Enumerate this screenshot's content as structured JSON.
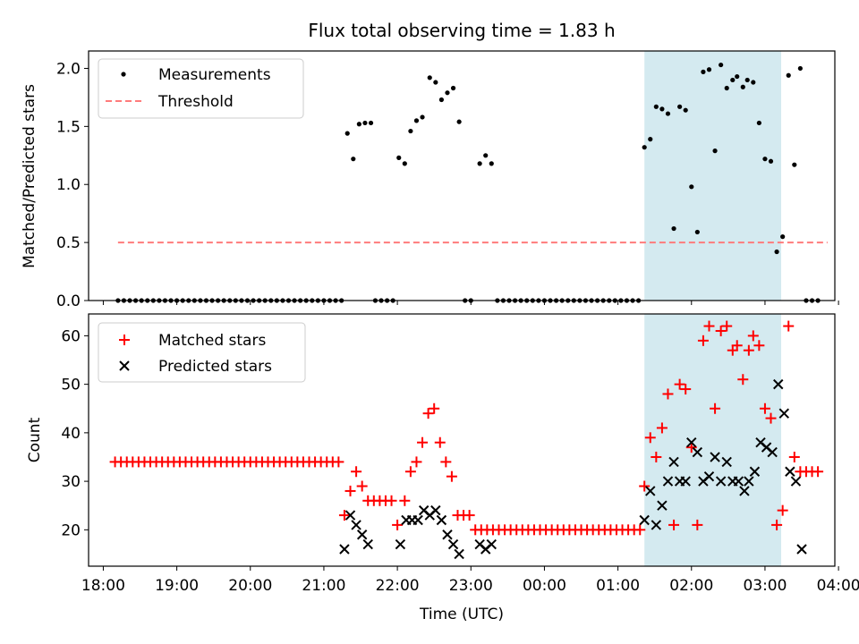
{
  "figure": {
    "title": "Flux total observing time = 1.83 h",
    "xlabel": "Time (UTC)",
    "x_ticks": [
      "18:00",
      "19:00",
      "20:00",
      "21:00",
      "22:00",
      "23:00",
      "00:00",
      "01:00",
      "02:00",
      "03:00",
      "04:00"
    ]
  },
  "chart_data": [
    {
      "type": "scatter",
      "ylabel": "Matched/Predicted stars",
      "xlim": [
        -0.2,
        9.95
      ],
      "ylim": [
        0,
        2.15
      ],
      "y_ticks": [
        "0.0",
        "0.5",
        "1.0",
        "1.5",
        "2.0"
      ],
      "y_tick_values": [
        0,
        0.5,
        1.0,
        1.5,
        2.0
      ],
      "legend_position": "top-left",
      "highlight_span": [
        7.36,
        9.22
      ],
      "highlight_color": "#d4eaf0",
      "threshold": {
        "name": "Threshold",
        "y": 0.5,
        "x": [
          0.2,
          9.85
        ],
        "color": "#ff7b7b"
      },
      "measurements": {
        "name": "Measurements",
        "color": "#000000",
        "points": [
          [
            0.2,
            0
          ],
          [
            0.28,
            0
          ],
          [
            0.36,
            0
          ],
          [
            0.44,
            0
          ],
          [
            0.52,
            0
          ],
          [
            0.6,
            0
          ],
          [
            0.68,
            0
          ],
          [
            0.76,
            0
          ],
          [
            0.84,
            0
          ],
          [
            0.92,
            0
          ],
          [
            1.0,
            0
          ],
          [
            1.08,
            0
          ],
          [
            1.16,
            0
          ],
          [
            1.24,
            0
          ],
          [
            1.32,
            0
          ],
          [
            1.4,
            0
          ],
          [
            1.48,
            0
          ],
          [
            1.56,
            0
          ],
          [
            1.64,
            0
          ],
          [
            1.72,
            0
          ],
          [
            1.8,
            0
          ],
          [
            1.88,
            0
          ],
          [
            1.96,
            0
          ],
          [
            2.04,
            0
          ],
          [
            2.12,
            0
          ],
          [
            2.2,
            0
          ],
          [
            2.28,
            0
          ],
          [
            2.36,
            0
          ],
          [
            2.44,
            0
          ],
          [
            2.52,
            0
          ],
          [
            2.6,
            0
          ],
          [
            2.68,
            0
          ],
          [
            2.76,
            0
          ],
          [
            2.84,
            0
          ],
          [
            2.92,
            0
          ],
          [
            3.0,
            0
          ],
          [
            3.08,
            0
          ],
          [
            3.16,
            0
          ],
          [
            3.24,
            0
          ],
          [
            3.32,
            1.44
          ],
          [
            3.4,
            1.22
          ],
          [
            3.48,
            1.52
          ],
          [
            3.56,
            1.53
          ],
          [
            3.64,
            1.53
          ],
          [
            3.7,
            0
          ],
          [
            3.78,
            0
          ],
          [
            3.86,
            0
          ],
          [
            3.94,
            0
          ],
          [
            4.02,
            1.23
          ],
          [
            4.1,
            1.18
          ],
          [
            4.18,
            1.46
          ],
          [
            4.26,
            1.55
          ],
          [
            4.34,
            1.58
          ],
          [
            4.44,
            1.92
          ],
          [
            4.52,
            1.88
          ],
          [
            4.6,
            1.73
          ],
          [
            4.68,
            1.79
          ],
          [
            4.76,
            1.83
          ],
          [
            4.84,
            1.54
          ],
          [
            4.92,
            0
          ],
          [
            5.0,
            0
          ],
          [
            5.12,
            1.18
          ],
          [
            5.2,
            1.25
          ],
          [
            5.28,
            1.18
          ],
          [
            5.36,
            0
          ],
          [
            5.44,
            0
          ],
          [
            5.52,
            0
          ],
          [
            5.6,
            0
          ],
          [
            5.68,
            0
          ],
          [
            5.76,
            0
          ],
          [
            5.84,
            0
          ],
          [
            5.92,
            0
          ],
          [
            6.0,
            0
          ],
          [
            6.08,
            0
          ],
          [
            6.16,
            0
          ],
          [
            6.24,
            0
          ],
          [
            6.32,
            0
          ],
          [
            6.4,
            0
          ],
          [
            6.48,
            0
          ],
          [
            6.56,
            0
          ],
          [
            6.64,
            0
          ],
          [
            6.72,
            0
          ],
          [
            6.8,
            0
          ],
          [
            6.88,
            0
          ],
          [
            6.96,
            0
          ],
          [
            7.04,
            0
          ],
          [
            7.12,
            0
          ],
          [
            7.2,
            0
          ],
          [
            7.28,
            0
          ],
          [
            7.36,
            1.32
          ],
          [
            7.44,
            1.39
          ],
          [
            7.52,
            1.67
          ],
          [
            7.6,
            1.65
          ],
          [
            7.68,
            1.61
          ],
          [
            7.76,
            0.62
          ],
          [
            7.84,
            1.67
          ],
          [
            7.92,
            1.64
          ],
          [
            8.0,
            0.98
          ],
          [
            8.08,
            0.59
          ],
          [
            8.16,
            1.97
          ],
          [
            8.24,
            1.99
          ],
          [
            8.32,
            1.29
          ],
          [
            8.4,
            2.03
          ],
          [
            8.48,
            1.83
          ],
          [
            8.56,
            1.9
          ],
          [
            8.62,
            1.93
          ],
          [
            8.7,
            1.84
          ],
          [
            8.76,
            1.9
          ],
          [
            8.84,
            1.88
          ],
          [
            8.92,
            1.53
          ],
          [
            9.0,
            1.22
          ],
          [
            9.08,
            1.2
          ],
          [
            9.16,
            0.42
          ],
          [
            9.24,
            0.55
          ],
          [
            9.32,
            1.94
          ],
          [
            9.4,
            1.17
          ],
          [
            9.48,
            2.0
          ],
          [
            9.56,
            0
          ],
          [
            9.64,
            0
          ],
          [
            9.72,
            0
          ]
        ]
      }
    },
    {
      "type": "scatter",
      "ylabel": "Count",
      "xlim": [
        -0.2,
        9.95
      ],
      "ylim": [
        12.5,
        64.5
      ],
      "y_ticks": [
        "20",
        "30",
        "40",
        "50",
        "60"
      ],
      "y_tick_values": [
        20,
        30,
        40,
        50,
        60
      ],
      "legend_position": "top-left",
      "highlight_span": [
        7.36,
        9.22
      ],
      "highlight_color": "#d4eaf0",
      "series": [
        {
          "name": "Matched stars",
          "marker": "plus",
          "color": "#ff0000",
          "points": [
            [
              0.16,
              34
            ],
            [
              0.24,
              34
            ],
            [
              0.32,
              34
            ],
            [
              0.4,
              34
            ],
            [
              0.48,
              34
            ],
            [
              0.56,
              34
            ],
            [
              0.64,
              34
            ],
            [
              0.72,
              34
            ],
            [
              0.8,
              34
            ],
            [
              0.88,
              34
            ],
            [
              0.96,
              34
            ],
            [
              1.04,
              34
            ],
            [
              1.12,
              34
            ],
            [
              1.2,
              34
            ],
            [
              1.28,
              34
            ],
            [
              1.36,
              34
            ],
            [
              1.44,
              34
            ],
            [
              1.52,
              34
            ],
            [
              1.6,
              34
            ],
            [
              1.68,
              34
            ],
            [
              1.76,
              34
            ],
            [
              1.84,
              34
            ],
            [
              1.92,
              34
            ],
            [
              2.0,
              34
            ],
            [
              2.08,
              34
            ],
            [
              2.16,
              34
            ],
            [
              2.24,
              34
            ],
            [
              2.32,
              34
            ],
            [
              2.4,
              34
            ],
            [
              2.48,
              34
            ],
            [
              2.56,
              34
            ],
            [
              2.64,
              34
            ],
            [
              2.72,
              34
            ],
            [
              2.8,
              34
            ],
            [
              2.88,
              34
            ],
            [
              2.96,
              34
            ],
            [
              3.04,
              34
            ],
            [
              3.12,
              34
            ],
            [
              3.2,
              34
            ],
            [
              3.28,
              23
            ],
            [
              3.36,
              28
            ],
            [
              3.44,
              32
            ],
            [
              3.52,
              29
            ],
            [
              3.6,
              26
            ],
            [
              3.68,
              26
            ],
            [
              3.76,
              26
            ],
            [
              3.84,
              26
            ],
            [
              3.92,
              26
            ],
            [
              4.0,
              21
            ],
            [
              4.1,
              26
            ],
            [
              4.18,
              32
            ],
            [
              4.26,
              34
            ],
            [
              4.34,
              38
            ],
            [
              4.42,
              44
            ],
            [
              4.5,
              45
            ],
            [
              4.58,
              38
            ],
            [
              4.66,
              34
            ],
            [
              4.74,
              31
            ],
            [
              4.82,
              23
            ],
            [
              4.9,
              23
            ],
            [
              4.98,
              23
            ],
            [
              5.06,
              20
            ],
            [
              5.14,
              20
            ],
            [
              5.22,
              20
            ],
            [
              5.3,
              20
            ],
            [
              5.38,
              20
            ],
            [
              5.46,
              20
            ],
            [
              5.54,
              20
            ],
            [
              5.62,
              20
            ],
            [
              5.7,
              20
            ],
            [
              5.78,
              20
            ],
            [
              5.86,
              20
            ],
            [
              5.94,
              20
            ],
            [
              6.02,
              20
            ],
            [
              6.1,
              20
            ],
            [
              6.18,
              20
            ],
            [
              6.26,
              20
            ],
            [
              6.34,
              20
            ],
            [
              6.42,
              20
            ],
            [
              6.5,
              20
            ],
            [
              6.58,
              20
            ],
            [
              6.66,
              20
            ],
            [
              6.74,
              20
            ],
            [
              6.82,
              20
            ],
            [
              6.9,
              20
            ],
            [
              6.98,
              20
            ],
            [
              7.06,
              20
            ],
            [
              7.14,
              20
            ],
            [
              7.22,
              20
            ],
            [
              7.3,
              20
            ],
            [
              7.36,
              29
            ],
            [
              7.44,
              39
            ],
            [
              7.52,
              35
            ],
            [
              7.6,
              41
            ],
            [
              7.68,
              48
            ],
            [
              7.76,
              21
            ],
            [
              7.84,
              50
            ],
            [
              7.92,
              49
            ],
            [
              8.0,
              37
            ],
            [
              8.08,
              21
            ],
            [
              8.16,
              59
            ],
            [
              8.24,
              62
            ],
            [
              8.32,
              45
            ],
            [
              8.4,
              61
            ],
            [
              8.48,
              62
            ],
            [
              8.56,
              57
            ],
            [
              8.62,
              58
            ],
            [
              8.7,
              51
            ],
            [
              8.78,
              57
            ],
            [
              8.84,
              60
            ],
            [
              8.92,
              58
            ],
            [
              9.0,
              45
            ],
            [
              9.08,
              43
            ],
            [
              9.16,
              21
            ],
            [
              9.24,
              24
            ],
            [
              9.32,
              62
            ],
            [
              9.4,
              35
            ],
            [
              9.48,
              32
            ],
            [
              9.56,
              32
            ],
            [
              9.64,
              32
            ],
            [
              9.72,
              32
            ]
          ]
        },
        {
          "name": "Predicted stars",
          "marker": "x",
          "color": "#000000",
          "points": [
            [
              3.28,
              16
            ],
            [
              3.36,
              23
            ],
            [
              3.44,
              21
            ],
            [
              3.52,
              19
            ],
            [
              3.6,
              17
            ],
            [
              4.04,
              17
            ],
            [
              4.12,
              22
            ],
            [
              4.2,
              22
            ],
            [
              4.28,
              22
            ],
            [
              4.36,
              24
            ],
            [
              4.44,
              23
            ],
            [
              4.52,
              24
            ],
            [
              4.6,
              22
            ],
            [
              4.68,
              19
            ],
            [
              4.76,
              17
            ],
            [
              4.84,
              15
            ],
            [
              5.12,
              17
            ],
            [
              5.2,
              16
            ],
            [
              5.28,
              17
            ],
            [
              7.36,
              22
            ],
            [
              7.44,
              28
            ],
            [
              7.52,
              21
            ],
            [
              7.6,
              25
            ],
            [
              7.68,
              30
            ],
            [
              7.76,
              34
            ],
            [
              7.84,
              30
            ],
            [
              7.92,
              30
            ],
            [
              8.0,
              38
            ],
            [
              8.08,
              36
            ],
            [
              8.16,
              30
            ],
            [
              8.24,
              31
            ],
            [
              8.32,
              35
            ],
            [
              8.4,
              30
            ],
            [
              8.48,
              34
            ],
            [
              8.56,
              30
            ],
            [
              8.64,
              30
            ],
            [
              8.72,
              28
            ],
            [
              8.78,
              30
            ],
            [
              8.86,
              32
            ],
            [
              8.94,
              38
            ],
            [
              9.02,
              37
            ],
            [
              9.1,
              36
            ],
            [
              9.18,
              50
            ],
            [
              9.26,
              44
            ],
            [
              9.34,
              32
            ],
            [
              9.42,
              30
            ],
            [
              9.5,
              16
            ]
          ]
        }
      ]
    }
  ]
}
